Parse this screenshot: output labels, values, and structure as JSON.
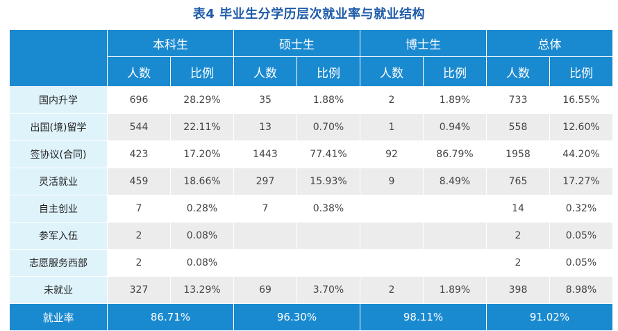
{
  "title": "表4  毕业生分学历层次就业率与就业结构",
  "groups": [
    "本科生",
    "硕士生",
    "博士生",
    "总体"
  ],
  "sub_headers": [
    "人数",
    "比例"
  ],
  "rows": [
    {
      "label": "国内升学",
      "cells": [
        "696",
        "28.29%",
        "35",
        "1.88%",
        "2",
        "1.89%",
        "733",
        "16.55%"
      ]
    },
    {
      "label": "出国(境)留学",
      "cells": [
        "544",
        "22.11%",
        "13",
        "0.70%",
        "1",
        "0.94%",
        "558",
        "12.60%"
      ]
    },
    {
      "label": "签协议(合同)",
      "cells": [
        "423",
        "17.20%",
        "1443",
        "77.41%",
        "92",
        "86.79%",
        "1958",
        "44.20%"
      ]
    },
    {
      "label": "灵活就业",
      "cells": [
        "459",
        "18.66%",
        "297",
        "15.93%",
        "9",
        "8.49%",
        "765",
        "17.27%"
      ]
    },
    {
      "label": "自主创业",
      "cells": [
        "7",
        "0.28%",
        "7",
        "0.38%",
        "",
        "",
        "14",
        "0.32%"
      ]
    },
    {
      "label": "参军入伍",
      "cells": [
        "2",
        "0.08%",
        "",
        "",
        "",
        "",
        "2",
        "0.05%"
      ]
    },
    {
      "label": "志愿服务西部",
      "cells": [
        "2",
        "0.08%",
        "",
        "",
        "",
        "",
        "2",
        "0.05%"
      ]
    },
    {
      "label": "未就业",
      "cells": [
        "327",
        "13.29%",
        "69",
        "3.70%",
        "2",
        "1.89%",
        "398",
        "8.98%"
      ]
    }
  ],
  "footer": {
    "label": "就业率",
    "values": [
      "86.71%",
      "96.30%",
      "98.11%",
      "91.02%"
    ]
  }
}
